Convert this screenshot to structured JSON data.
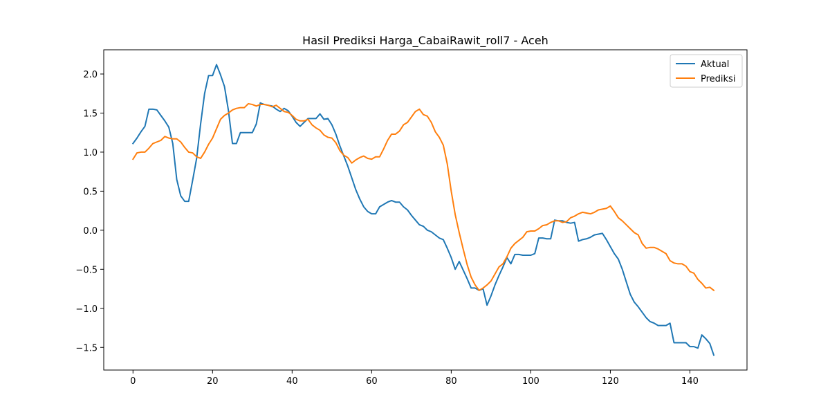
{
  "chart_data": {
    "type": "line",
    "title": "Hasil Prediksi Harga_CabaiRawit_roll7 - Aceh",
    "xlabel": "",
    "ylabel": "",
    "xlim": [
      -7.35,
      154.35
    ],
    "ylim": [
      -1.79,
      2.31
    ],
    "xticks": [
      0,
      20,
      40,
      60,
      80,
      100,
      120,
      140
    ],
    "yticks": [
      -1.5,
      -1.0,
      -0.5,
      0.0,
      0.5,
      1.0,
      1.5,
      2.0
    ],
    "xtick_labels": [
      "0",
      "20",
      "40",
      "60",
      "80",
      "100",
      "120",
      "140"
    ],
    "ytick_labels": [
      "−1.5",
      "−1.0",
      "−0.5",
      "0.0",
      "0.5",
      "1.0",
      "1.5",
      "2.0"
    ],
    "grid": false,
    "legend_position": "top-right",
    "series": [
      {
        "name": "Aktual",
        "color": "#1f77b4",
        "x": [
          0,
          1,
          2,
          3,
          4,
          5,
          6,
          7,
          8,
          9,
          10,
          11,
          12,
          13,
          14,
          15,
          16,
          17,
          18,
          19,
          20,
          21,
          22,
          23,
          24,
          25,
          26,
          27,
          28,
          29,
          30,
          31,
          32,
          33,
          34,
          35,
          36,
          37,
          38,
          39,
          40,
          41,
          42,
          43,
          44,
          45,
          46,
          47,
          48,
          49,
          50,
          51,
          52,
          53,
          54,
          55,
          56,
          57,
          58,
          59,
          60,
          61,
          62,
          63,
          64,
          65,
          66,
          67,
          68,
          69,
          70,
          71,
          72,
          73,
          74,
          75,
          76,
          77,
          78,
          79,
          80,
          81,
          82,
          83,
          84,
          85,
          86,
          87,
          88,
          89,
          90,
          91,
          92,
          93,
          94,
          95,
          96,
          97,
          98,
          99,
          100,
          101,
          102,
          103,
          104,
          105,
          106,
          107,
          108,
          109,
          110,
          111,
          112,
          113,
          114,
          115,
          116,
          117,
          118,
          119,
          120,
          121,
          122,
          123,
          124,
          125,
          126,
          127,
          128,
          129,
          130,
          131,
          132,
          133,
          134,
          135,
          136,
          137,
          138,
          139,
          140,
          141,
          142,
          143,
          144,
          145,
          146
        ],
        "y": [
          1.11,
          1.18,
          1.26,
          1.33,
          1.55,
          1.55,
          1.54,
          1.47,
          1.4,
          1.32,
          1.11,
          0.65,
          0.44,
          0.37,
          0.37,
          0.64,
          0.92,
          1.36,
          1.75,
          1.98,
          1.98,
          2.12,
          1.99,
          1.84,
          1.53,
          1.11,
          1.11,
          1.25,
          1.25,
          1.25,
          1.25,
          1.36,
          1.63,
          1.61,
          1.6,
          1.59,
          1.55,
          1.52,
          1.56,
          1.53,
          1.46,
          1.38,
          1.33,
          1.38,
          1.43,
          1.43,
          1.43,
          1.49,
          1.42,
          1.43,
          1.35,
          1.23,
          1.08,
          0.95,
          0.82,
          0.67,
          0.52,
          0.4,
          0.3,
          0.24,
          0.21,
          0.21,
          0.3,
          0.33,
          0.36,
          0.38,
          0.36,
          0.36,
          0.3,
          0.26,
          0.19,
          0.13,
          0.07,
          0.05,
          0.0,
          -0.02,
          -0.06,
          -0.1,
          -0.12,
          -0.23,
          -0.35,
          -0.5,
          -0.4,
          -0.51,
          -0.62,
          -0.74,
          -0.74,
          -0.77,
          -0.75,
          -0.96,
          -0.84,
          -0.7,
          -0.58,
          -0.47,
          -0.35,
          -0.43,
          -0.31,
          -0.31,
          -0.32,
          -0.32,
          -0.32,
          -0.3,
          -0.1,
          -0.1,
          -0.11,
          -0.11,
          0.13,
          0.12,
          0.12,
          0.1,
          0.09,
          0.1,
          -0.14,
          -0.12,
          -0.11,
          -0.09,
          -0.06,
          -0.05,
          -0.04,
          -0.12,
          -0.21,
          -0.3,
          -0.37,
          -0.5,
          -0.66,
          -0.82,
          -0.92,
          -0.98,
          -1.05,
          -1.12,
          -1.17,
          -1.19,
          -1.22,
          -1.22,
          -1.22,
          -1.19,
          -1.44,
          -1.44,
          -1.44,
          -1.44,
          -1.49,
          -1.49,
          -1.51,
          -1.34,
          -1.39,
          -1.45,
          -1.6
        ]
      },
      {
        "name": "Prediksi",
        "color": "#ff7f0e",
        "x": [
          0,
          1,
          2,
          3,
          4,
          5,
          6,
          7,
          8,
          9,
          10,
          11,
          12,
          13,
          14,
          15,
          16,
          17,
          18,
          19,
          20,
          21,
          22,
          23,
          24,
          25,
          26,
          27,
          28,
          29,
          30,
          31,
          32,
          33,
          34,
          35,
          36,
          37,
          38,
          39,
          40,
          41,
          42,
          43,
          44,
          45,
          46,
          47,
          48,
          49,
          50,
          51,
          52,
          53,
          54,
          55,
          56,
          57,
          58,
          59,
          60,
          61,
          62,
          63,
          64,
          65,
          66,
          67,
          68,
          69,
          70,
          71,
          72,
          73,
          74,
          75,
          76,
          77,
          78,
          79,
          80,
          81,
          82,
          83,
          84,
          85,
          86,
          87,
          88,
          89,
          90,
          91,
          92,
          93,
          94,
          95,
          96,
          97,
          98,
          99,
          100,
          101,
          102,
          103,
          104,
          105,
          106,
          107,
          108,
          109,
          110,
          111,
          112,
          113,
          114,
          115,
          116,
          117,
          118,
          119,
          120,
          121,
          122,
          123,
          124,
          125,
          126,
          127,
          128,
          129,
          130,
          131,
          132,
          133,
          134,
          135,
          136,
          137,
          138,
          139,
          140,
          141,
          142,
          143,
          144,
          145,
          146
        ],
        "y": [
          0.91,
          0.99,
          1.0,
          1.0,
          1.05,
          1.11,
          1.13,
          1.15,
          1.2,
          1.18,
          1.17,
          1.17,
          1.13,
          1.06,
          1.0,
          0.99,
          0.94,
          0.92,
          1.0,
          1.1,
          1.18,
          1.3,
          1.42,
          1.47,
          1.5,
          1.54,
          1.56,
          1.57,
          1.57,
          1.62,
          1.61,
          1.59,
          1.61,
          1.61,
          1.6,
          1.58,
          1.6,
          1.56,
          1.52,
          1.51,
          1.47,
          1.42,
          1.4,
          1.4,
          1.42,
          1.35,
          1.31,
          1.28,
          1.22,
          1.19,
          1.18,
          1.12,
          1.02,
          0.96,
          0.93,
          0.86,
          0.9,
          0.93,
          0.95,
          0.92,
          0.91,
          0.94,
          0.94,
          1.04,
          1.15,
          1.23,
          1.23,
          1.27,
          1.35,
          1.38,
          1.45,
          1.52,
          1.55,
          1.48,
          1.46,
          1.38,
          1.26,
          1.19,
          1.09,
          0.85,
          0.5,
          0.2,
          -0.03,
          -0.24,
          -0.44,
          -0.6,
          -0.7,
          -0.77,
          -0.74,
          -0.7,
          -0.65,
          -0.56,
          -0.47,
          -0.43,
          -0.34,
          -0.23,
          -0.17,
          -0.13,
          -0.09,
          -0.02,
          -0.01,
          -0.01,
          0.02,
          0.06,
          0.07,
          0.1,
          0.12,
          0.12,
          0.1,
          0.11,
          0.16,
          0.18,
          0.21,
          0.23,
          0.22,
          0.21,
          0.23,
          0.26,
          0.27,
          0.28,
          0.31,
          0.24,
          0.16,
          0.12,
          0.07,
          0.02,
          -0.03,
          -0.06,
          -0.17,
          -0.23,
          -0.22,
          -0.22,
          -0.24,
          -0.27,
          -0.3,
          -0.39,
          -0.42,
          -0.43,
          -0.43,
          -0.46,
          -0.53,
          -0.55,
          -0.63,
          -0.68,
          -0.74,
          -0.73,
          -0.77
        ]
      }
    ]
  }
}
